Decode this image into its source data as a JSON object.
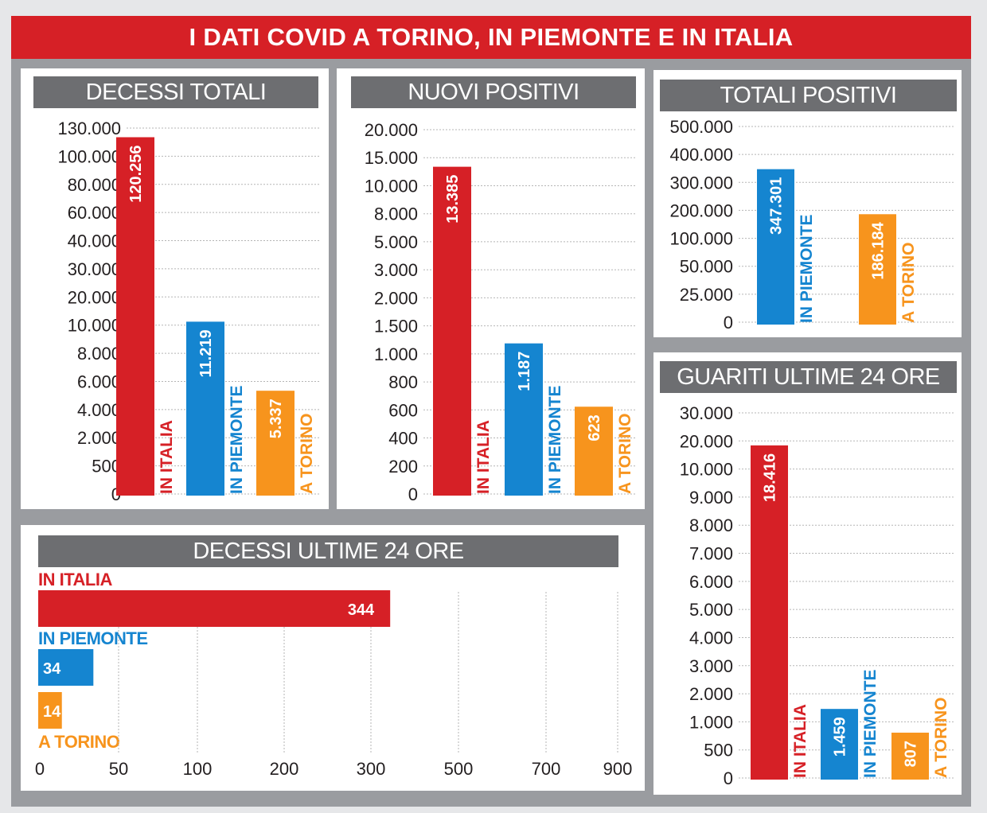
{
  "title": "I DATI COVID A TORINO, IN PIEMONTE E IN ITALIA",
  "colors": {
    "italia": "#d62026",
    "piemonte": "#1585d0",
    "torino": "#f7941d",
    "header_bg": "#6d6e71",
    "title_bg": "#d62026"
  },
  "chart_data": [
    {
      "id": "decessi_totali",
      "type": "bar",
      "title": "DECESSI TOTALI",
      "ticks": [
        "130.000",
        "100.000",
        "80.000",
        "60.000",
        "40.000",
        "30.000",
        "20.000",
        "10.000",
        "8.000",
        "6.000",
        "4.000",
        "2.000",
        "500",
        "0"
      ],
      "categories": [
        "IN ITALIA",
        "IN PIEMONTE",
        "A TORINO"
      ],
      "values": [
        120256,
        11219,
        5337
      ],
      "value_labels": [
        "120.256",
        "11.219",
        "5.337"
      ],
      "grid": true,
      "axis_scale": "non-uniform (irregular tick spacing)"
    },
    {
      "id": "nuovi_positivi",
      "type": "bar",
      "title": "NUOVI POSITIVI",
      "ticks": [
        "20.000",
        "15.000",
        "10.000",
        "8.000",
        "5.000",
        "3.000",
        "2.000",
        "1.500",
        "1.000",
        "800",
        "600",
        "400",
        "200",
        "0"
      ],
      "categories": [
        "IN ITALIA",
        "IN PIEMONTE",
        "A TORINO"
      ],
      "values": [
        13385,
        1187,
        623
      ],
      "value_labels": [
        "13.385",
        "1.187",
        "623"
      ],
      "grid": true,
      "axis_scale": "non-uniform (irregular tick spacing)"
    },
    {
      "id": "totali_positivi",
      "type": "bar",
      "title": "TOTALI POSITIVI",
      "ticks": [
        "500.000",
        "400.000",
        "300.000",
        "200.000",
        "100.000",
        "50.000",
        "25.000",
        "0"
      ],
      "categories": [
        "IN PIEMONTE",
        "A TORINO"
      ],
      "values": [
        347301,
        186184
      ],
      "value_labels": [
        "347.301",
        "186.184"
      ],
      "grid": true,
      "axis_scale": "non-uniform (irregular tick spacing)"
    },
    {
      "id": "guariti_ultime_24_ore",
      "type": "bar",
      "title": "GUARITI ULTIME 24 ORE",
      "ticks": [
        "30.000",
        "20.000",
        "10.000",
        "9.000",
        "8.000",
        "7.000",
        "6.000",
        "5.000",
        "4.000",
        "3.000",
        "2.000",
        "1.000",
        "500",
        "0"
      ],
      "categories": [
        "IN ITALIA",
        "IN PIEMONTE",
        "A TORINO"
      ],
      "values": [
        18416,
        1459,
        807
      ],
      "value_labels": [
        "18.416",
        "1.459",
        "807"
      ],
      "grid": true,
      "axis_scale": "non-uniform (irregular tick spacing)"
    },
    {
      "id": "decessi_ultime_24_ore",
      "type": "bar",
      "orientation": "horizontal",
      "title": "DECESSI ULTIME 24 ORE",
      "ticks": [
        "0",
        "50",
        "100",
        "200",
        "300",
        "500",
        "700",
        "900"
      ],
      "categories": [
        "IN ITALIA",
        "IN PIEMONTE",
        "A TORINO"
      ],
      "values": [
        344,
        34,
        14
      ],
      "value_labels": [
        "344",
        "34",
        "14"
      ],
      "grid": true,
      "axis_scale": "non-uniform (irregular tick spacing)"
    }
  ]
}
